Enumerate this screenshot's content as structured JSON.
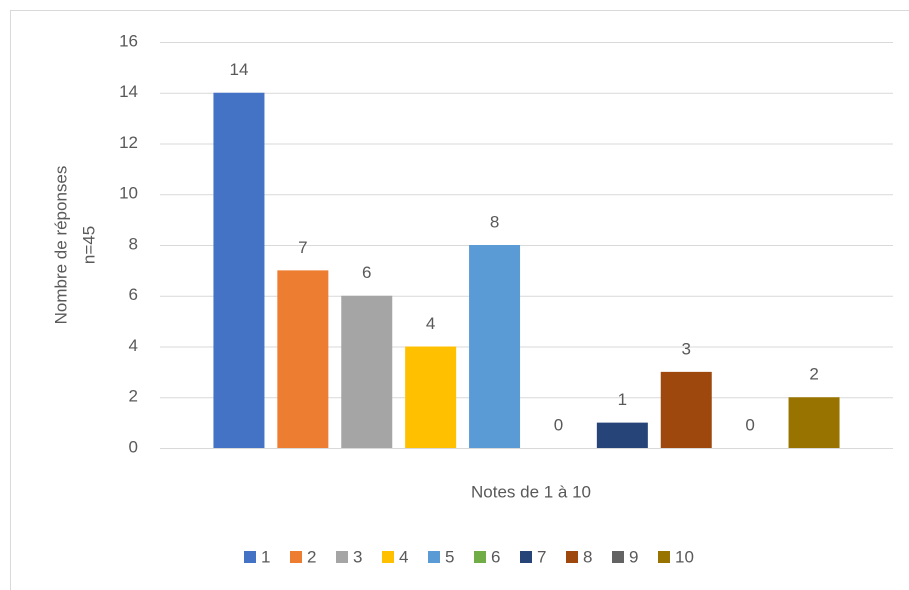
{
  "chart_data": {
    "type": "bar",
    "x_label": "Notes de 1 à 10",
    "y_label": [
      "Nombre de réponses",
      "n=45"
    ],
    "categories": [
      null
    ],
    "series": [
      {
        "name": "1",
        "color": "#4472c4",
        "values": [
          14
        ]
      },
      {
        "name": "2",
        "color": "#ed7d31",
        "values": [
          7
        ]
      },
      {
        "name": "3",
        "color": "#a5a5a5",
        "values": [
          6
        ]
      },
      {
        "name": "4",
        "color": "#ffc000",
        "values": [
          4
        ]
      },
      {
        "name": "5",
        "color": "#5b9bd5",
        "values": [
          8
        ]
      },
      {
        "name": "6",
        "color": "#70ad47",
        "values": [
          0
        ]
      },
      {
        "name": "7",
        "color": "#264478",
        "values": [
          1
        ]
      },
      {
        "name": "8",
        "color": "#9e480e",
        "values": [
          3
        ]
      },
      {
        "name": "9",
        "color": "#636363",
        "values": [
          0
        ]
      },
      {
        "name": "10",
        "color": "#997300",
        "values": [
          2
        ]
      }
    ],
    "ylim": [
      0,
      16
    ],
    "yticks": [
      0,
      2,
      4,
      6,
      8,
      10,
      12,
      14,
      16
    ],
    "grid": true,
    "data_labels": true,
    "legend": "bottom"
  }
}
